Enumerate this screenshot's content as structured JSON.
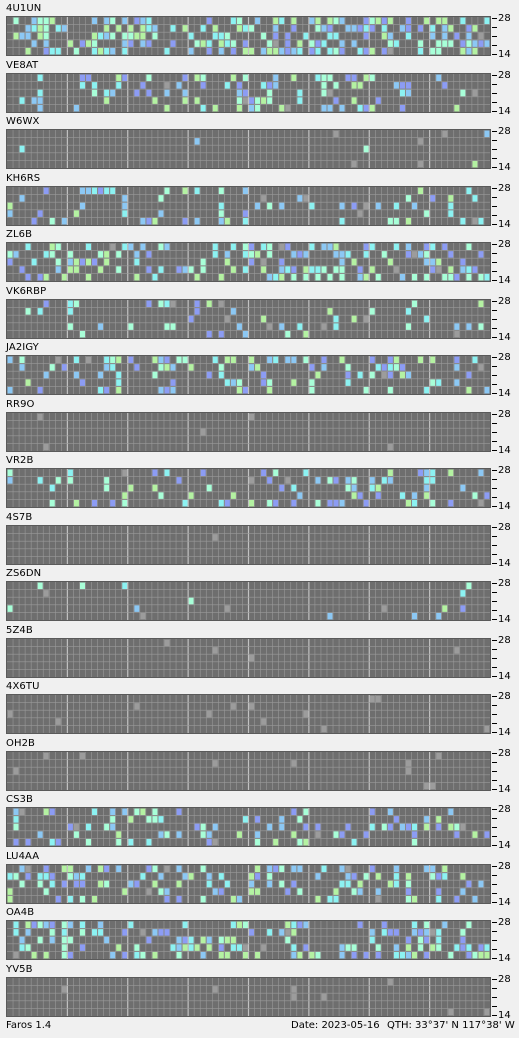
{
  "scale": {
    "top_label": "28",
    "bottom_label": "14"
  },
  "colors": {
    "grid_background": "#6e6e6e",
    "grid_line": "#9a9a9a",
    "grid_major_line": "#c2c2c2",
    "signal_strong": "#b4f2a2",
    "signal_good": "#a8ffd8",
    "signal_medium": "#8cf2f2",
    "signal_weak": "#8cc8f4",
    "signal_faint": "#8c9cf4",
    "noise": "#9c9c9c"
  },
  "beacons": [
    {
      "callsign": "4U1UN",
      "activity_level": 0.85
    },
    {
      "callsign": "VE8AT",
      "activity_level": 0.35
    },
    {
      "callsign": "W6WX",
      "activity_level": 0.02
    },
    {
      "callsign": "KH6RS",
      "activity_level": 0.3
    },
    {
      "callsign": "ZL6B",
      "activity_level": 0.55
    },
    {
      "callsign": "VK6RBP",
      "activity_level": 0.2
    },
    {
      "callsign": "JA2IGY",
      "activity_level": 0.45
    },
    {
      "callsign": "RR9O",
      "activity_level": 0.0
    },
    {
      "callsign": "VR2B",
      "activity_level": 0.35
    },
    {
      "callsign": "4S7B",
      "activity_level": 0.0
    },
    {
      "callsign": "ZS6DN",
      "activity_level": 0.08
    },
    {
      "callsign": "5Z4B",
      "activity_level": 0.0
    },
    {
      "callsign": "4X6TU",
      "activity_level": 0.0
    },
    {
      "callsign": "OH2B",
      "activity_level": 0.0
    },
    {
      "callsign": "CS3B",
      "activity_level": 0.35
    },
    {
      "callsign": "LU4AA",
      "activity_level": 0.5
    },
    {
      "callsign": "OA4B",
      "activity_level": 0.55
    },
    {
      "callsign": "YV5B",
      "activity_level": 0.0
    }
  ],
  "status": {
    "app_version": "Faros 1.4",
    "date": "Date: 2023-05-16",
    "qth": "QTH: 33°37' N  117°38' W"
  }
}
